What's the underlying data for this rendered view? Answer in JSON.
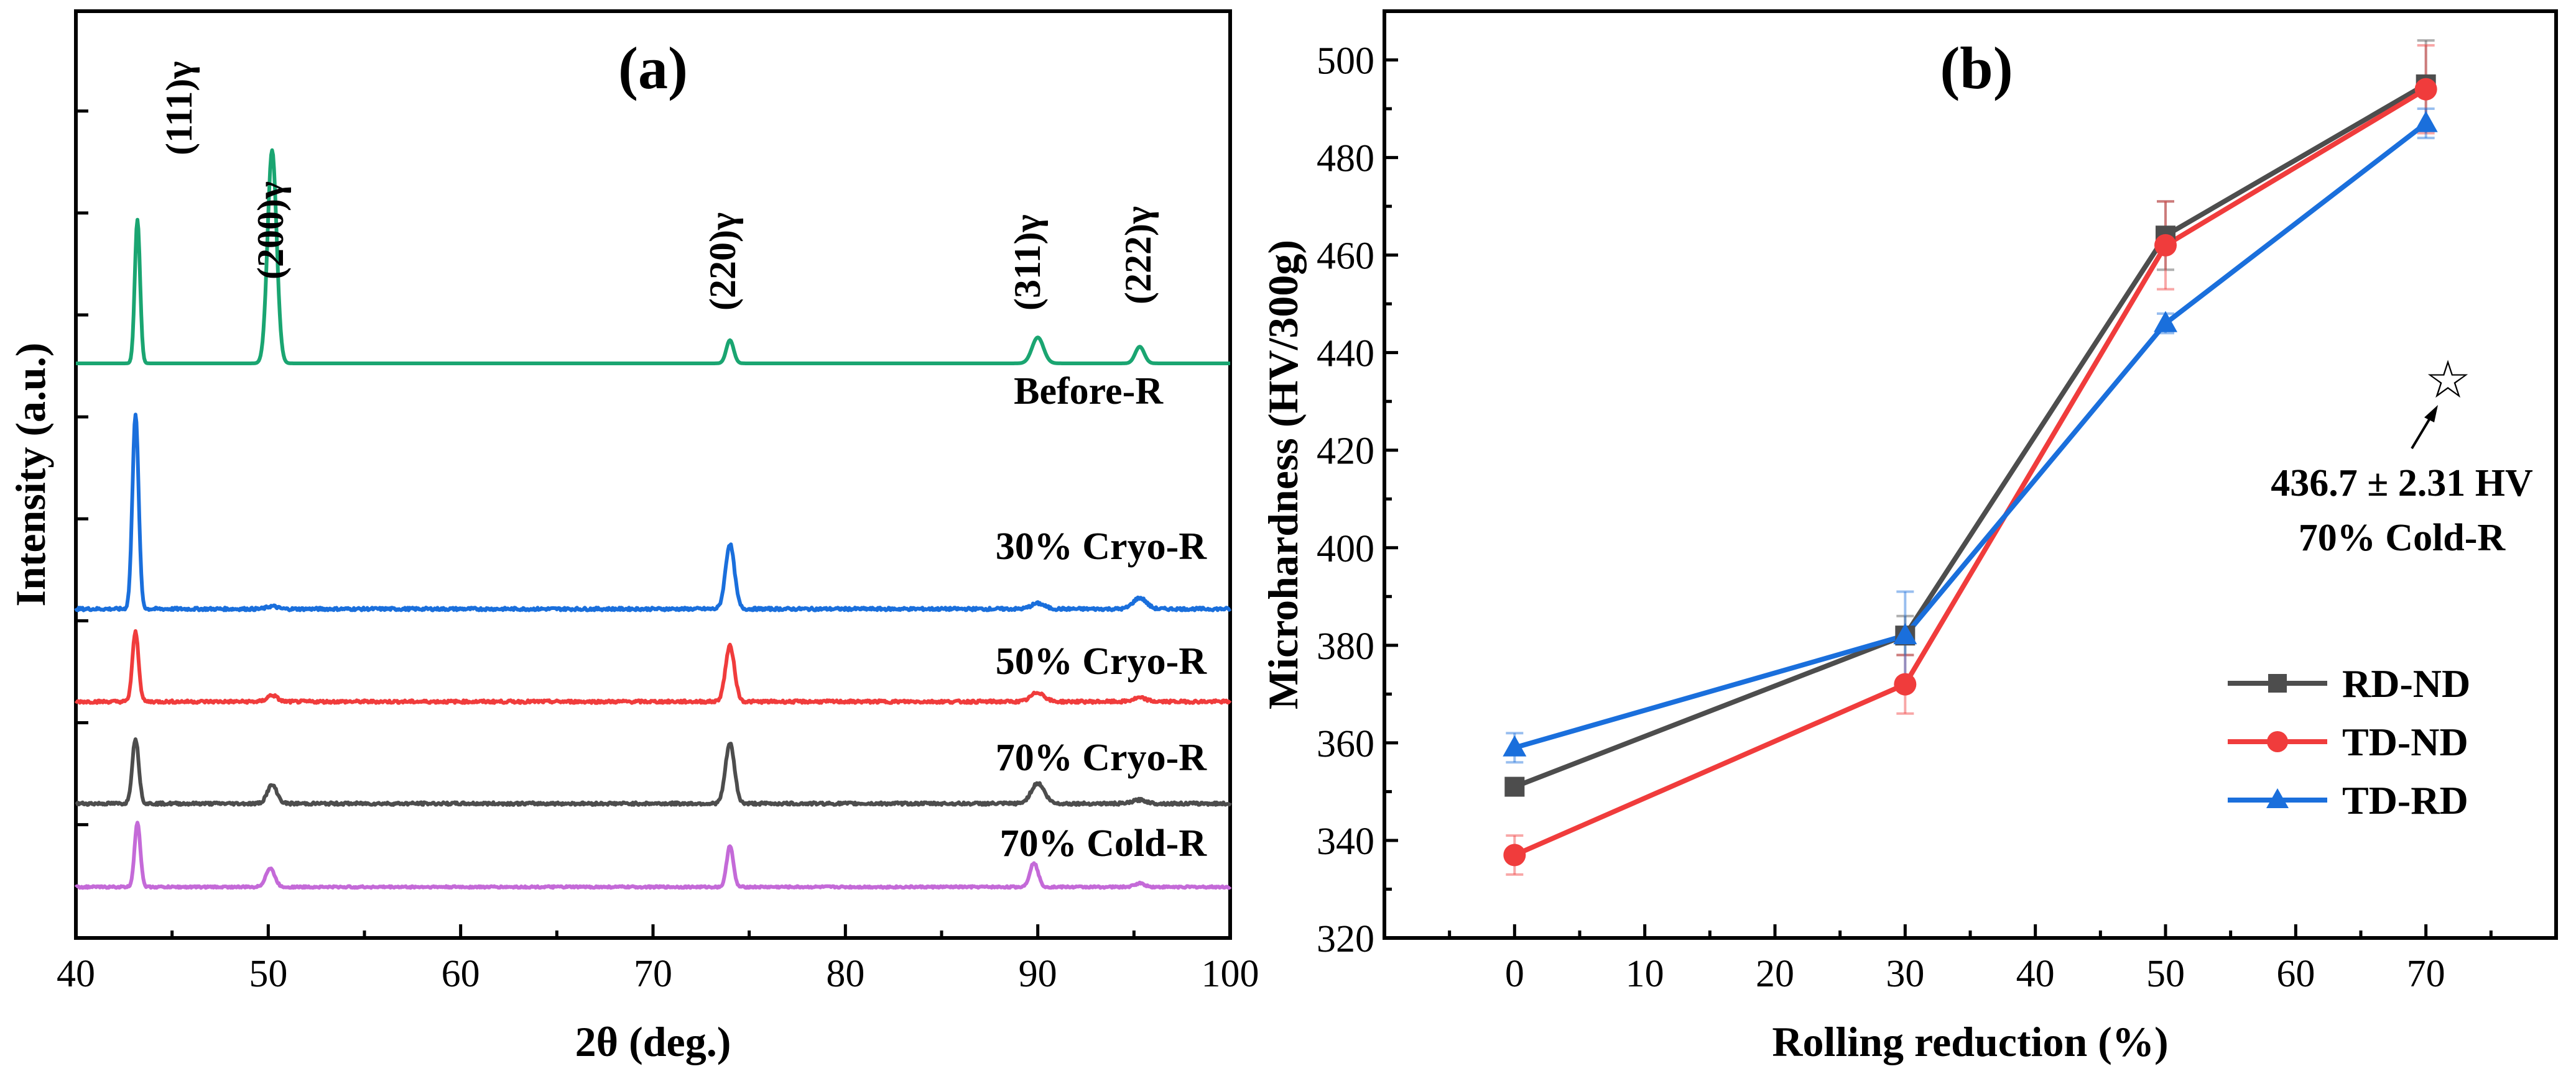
{
  "colors": {
    "before": "#1aa571",
    "cryo30": "#1a6fdc",
    "cryo50": "#f03c3c",
    "cryo70": "#4d4d4d",
    "cold70": "#c46ad8",
    "rdnd": "#4d4d4d",
    "tdnd": "#f03c3c",
    "tdrd": "#1a6fdc"
  },
  "chart_data": [
    {
      "id": "a",
      "type": "line",
      "panel_label": "(a)",
      "xlabel": "2θ (deg.)",
      "ylabel": "Intensity (a.u.)",
      "xlim": [
        40,
        100
      ],
      "xticks": [
        "40",
        "50",
        "60",
        "70",
        "80",
        "90",
        "100"
      ],
      "xtick_values": [
        40,
        50,
        60,
        70,
        80,
        90,
        100
      ],
      "grid": false,
      "peaks": [
        {
          "label": "(111)γ",
          "x": 43.2
        },
        {
          "label": "(200)γ",
          "x": 50.2
        },
        {
          "label": "(220)γ",
          "x": 74.0
        },
        {
          "label": "(311)γ",
          "x": 90.0
        },
        {
          "label": "(222)γ",
          "x": 95.3
        }
      ],
      "series": [
        {
          "name": "Before-R",
          "color_key": "before",
          "baseline": 0.62,
          "noise": 0.0,
          "peaks": [
            [
              43.2,
              0.155,
              0.32
            ],
            [
              50.2,
              0.23,
              0.55
            ],
            [
              74.0,
              0.025,
              0.45
            ],
            [
              90.0,
              0.028,
              0.7
            ],
            [
              95.3,
              0.018,
              0.55
            ]
          ]
        },
        {
          "name": "30% Cryo-R",
          "color_key": "cryo30",
          "baseline": 0.355,
          "noise": 0.003,
          "peaks": [
            [
              43.1,
              0.21,
              0.38
            ],
            [
              50.2,
              0.003,
              0.6
            ],
            [
              74.0,
              0.07,
              0.55
            ],
            [
              90.0,
              0.006,
              0.8
            ],
            [
              95.3,
              0.012,
              0.8
            ]
          ]
        },
        {
          "name": "50% Cryo-R",
          "color_key": "cryo50",
          "baseline": 0.255,
          "noise": 0.003,
          "peaks": [
            [
              43.1,
              0.075,
              0.38
            ],
            [
              50.2,
              0.007,
              0.6
            ],
            [
              74.0,
              0.06,
              0.55
            ],
            [
              90.0,
              0.01,
              0.8
            ],
            [
              95.3,
              0.004,
              0.8
            ]
          ]
        },
        {
          "name": "70% Cryo-R",
          "color_key": "cryo70",
          "baseline": 0.145,
          "noise": 0.003,
          "peaks": [
            [
              43.1,
              0.07,
              0.4
            ],
            [
              50.2,
              0.02,
              0.6
            ],
            [
              74.0,
              0.065,
              0.55
            ],
            [
              90.0,
              0.022,
              0.8
            ],
            [
              95.3,
              0.004,
              0.8
            ]
          ]
        },
        {
          "name": "70% Cold-R",
          "color_key": "cold70",
          "baseline": 0.055,
          "noise": 0.002,
          "peaks": [
            [
              43.2,
              0.07,
              0.35
            ],
            [
              50.1,
              0.02,
              0.55
            ],
            [
              74.0,
              0.045,
              0.4
            ],
            [
              89.8,
              0.026,
              0.5
            ],
            [
              95.3,
              0.004,
              0.6
            ]
          ]
        }
      ]
    },
    {
      "id": "b",
      "type": "line",
      "panel_label": "(b)",
      "xlabel": "Rolling reduction (%)",
      "ylabel": "Microhardness (HV/300g)",
      "xlim": [
        -10,
        80
      ],
      "ylim": [
        320,
        510
      ],
      "xticks": [
        "0",
        "10",
        "20",
        "30",
        "40",
        "50",
        "60",
        "70"
      ],
      "xtick_values": [
        0,
        10,
        20,
        30,
        40,
        50,
        60,
        70
      ],
      "yticks": [
        "320",
        "340",
        "360",
        "380",
        "400",
        "420",
        "440",
        "460",
        "480",
        "500"
      ],
      "ytick_values": [
        320,
        340,
        360,
        380,
        400,
        420,
        440,
        460,
        480,
        500
      ],
      "grid": false,
      "legend": "bottom-right",
      "x": [
        0,
        30,
        50,
        70
      ],
      "series": [
        {
          "name": "RD-ND",
          "color_key": "rdnd",
          "marker": "square",
          "values": [
            351,
            382,
            464,
            495
          ],
          "errors": [
            1.5,
            4,
            7,
            9
          ]
        },
        {
          "name": "TD-ND",
          "color_key": "tdnd",
          "marker": "circle",
          "values": [
            337,
            372,
            462,
            494
          ],
          "errors": [
            4,
            6,
            9,
            9
          ]
        },
        {
          "name": "TD-RD",
          "color_key": "tdrd",
          "marker": "triangle",
          "values": [
            359,
            382,
            446,
            487
          ],
          "errors": [
            3,
            9,
            2,
            3
          ]
        }
      ],
      "annotation": {
        "x": 70,
        "y": 434,
        "line1": "436.7 ± 2.31 HV",
        "line2": "70% Cold-R"
      }
    }
  ]
}
